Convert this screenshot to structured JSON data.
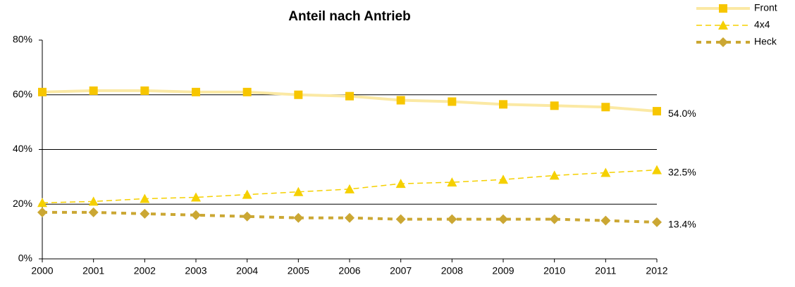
{
  "chart_data": {
    "type": "line",
    "title": "Anteil nach Antrieb",
    "categories": [
      "2000",
      "2001",
      "2002",
      "2003",
      "2004",
      "2005",
      "2006",
      "2007",
      "2008",
      "2009",
      "2010",
      "2011",
      "2012"
    ],
    "series": [
      {
        "name": "Front",
        "color": "#fbe9a4",
        "marker_color": "#f7c600",
        "marker": "square",
        "dash": "solid",
        "values": [
          61,
          61.5,
          61.5,
          61,
          61,
          60,
          59.5,
          58,
          57.5,
          56.5,
          56,
          55.5,
          54
        ],
        "value_labels": [
          null,
          null,
          null,
          null,
          null,
          null,
          null,
          null,
          null,
          null,
          null,
          null,
          "54.0%"
        ]
      },
      {
        "name": "4x4",
        "color": "#f5d000",
        "marker_color": "#f5d000",
        "marker": "triangle",
        "dash": "dashed",
        "values": [
          20.5,
          21,
          22,
          22.5,
          23.5,
          24.5,
          25.5,
          27.5,
          28,
          29,
          30.5,
          31.5,
          32.5
        ],
        "value_labels": [
          null,
          null,
          null,
          null,
          null,
          null,
          null,
          null,
          null,
          null,
          null,
          null,
          "32.5%"
        ]
      },
      {
        "name": "Heck",
        "color": "#cba733",
        "marker_color": "#cba733",
        "marker": "diamond",
        "dash": "dotted",
        "values": [
          17,
          17,
          16.5,
          16,
          15.5,
          15,
          15,
          14.5,
          14.5,
          14.5,
          14.5,
          14,
          13.4
        ],
        "value_labels": [
          null,
          null,
          null,
          null,
          null,
          null,
          null,
          null,
          null,
          null,
          null,
          null,
          "13.4%"
        ]
      }
    ],
    "ylim": [
      0,
      80
    ],
    "yticks": [
      {
        "value": 0,
        "label": "0%"
      },
      {
        "value": 20,
        "label": "20%"
      },
      {
        "value": 40,
        "label": "40%"
      },
      {
        "value": 60,
        "label": "60%"
      },
      {
        "value": 80,
        "label": "80%"
      }
    ],
    "grid": true,
    "legend": "top-right"
  }
}
